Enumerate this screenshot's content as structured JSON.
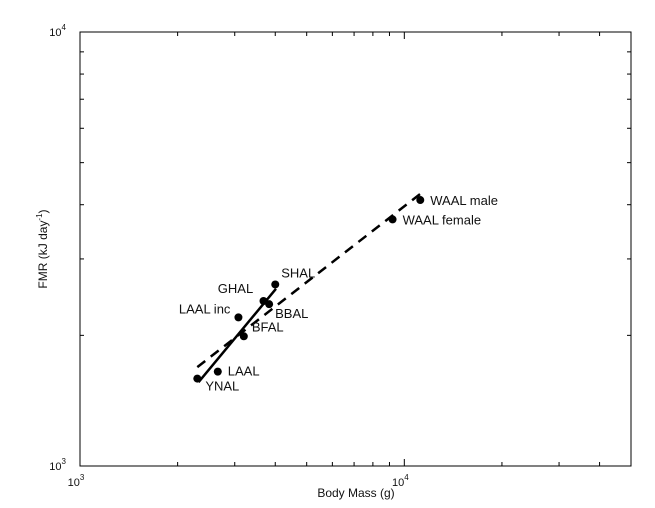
{
  "chart_data": {
    "type": "scatter",
    "title": "",
    "xlabel": "Body Mass (g)",
    "ylabel": {
      "base": "FMR (kJ day",
      "sup": "-1",
      "close": ")"
    },
    "x_scale": "log",
    "y_scale": "log",
    "xlim": [
      1000,
      50000
    ],
    "ylim": [
      1000,
      10000
    ],
    "x_ticks": [
      {
        "value": 1000,
        "base": "10",
        "exp": "3"
      },
      {
        "value": 10000,
        "base": "10",
        "exp": "4"
      }
    ],
    "y_ticks": [
      {
        "value": 1000,
        "base": "10",
        "exp": "3"
      },
      {
        "value": 10000,
        "base": "10",
        "exp": "4"
      }
    ],
    "grid": false,
    "points": [
      {
        "label": "WAAL male",
        "x": 11200,
        "y": 4100
      },
      {
        "label": "WAAL female",
        "x": 9200,
        "y": 3700
      },
      {
        "label": "SHAL",
        "x": 4000,
        "y": 2620
      },
      {
        "label": "GHAL",
        "x": 3680,
        "y": 2400
      },
      {
        "label": "BBAL",
        "x": 3830,
        "y": 2360
      },
      {
        "label": "LAAL inc",
        "x": 3080,
        "y": 2200
      },
      {
        "label": "BFAL",
        "x": 3200,
        "y": 1990
      },
      {
        "label": "LAAL",
        "x": 2660,
        "y": 1650
      },
      {
        "label": "YNAL",
        "x": 2300,
        "y": 1590
      }
    ],
    "fits": [
      {
        "style": "solid",
        "x": [
          2320,
          4020
        ],
        "y": [
          1560,
          2560
        ]
      },
      {
        "style": "dashed",
        "x": [
          2300,
          11400
        ],
        "y": [
          1690,
          4280
        ]
      }
    ]
  }
}
